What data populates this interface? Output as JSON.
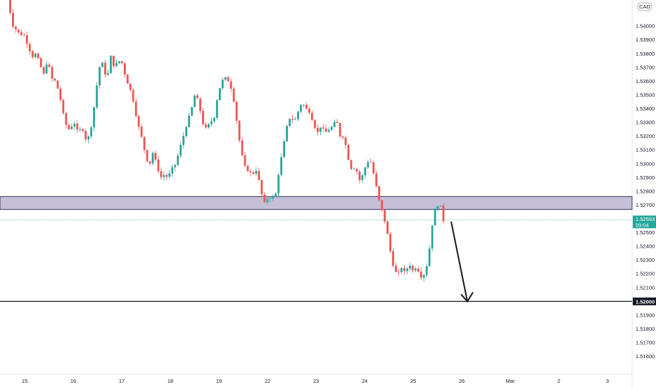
{
  "chart_data": {
    "type": "candlestick",
    "currency": "CAD",
    "colors": {
      "up": "#26a69a",
      "down": "#ef5350",
      "zone_fill": "#b2a9cc",
      "zone_border": "#3a3355",
      "level_line": "#131722",
      "price_line": "#26a69a",
      "arrow": "#131722"
    },
    "y_axis": {
      "range": [
        1.5147,
        1.5419
      ],
      "ticks": [
        "1.54000",
        "1.53900",
        "1.53800",
        "1.53700",
        "1.53600",
        "1.53500",
        "1.53400",
        "1.53300",
        "1.53200",
        "1.53100",
        "1.53000",
        "1.52900",
        "1.52800",
        "1.52700",
        "1.52500",
        "1.52400",
        "1.52300",
        "1.52200",
        "1.52100",
        "1.51900",
        "1.51800",
        "1.51700",
        "1.51600"
      ]
    },
    "x_axis": {
      "labels": [
        "15",
        "16",
        "17",
        "18",
        "19",
        "22",
        "23",
        "24",
        "25",
        "26",
        "Mar",
        "2",
        "3"
      ]
    },
    "current_price": {
      "label": "1.52593",
      "value": 1.52593,
      "countdown": "59:04"
    },
    "level": {
      "label": "1.52000",
      "value": 1.52
    },
    "resistance_zone": {
      "low": 1.52668,
      "high": 1.52762
    },
    "projection": {
      "from": 1.5258,
      "to": 1.52
    },
    "price_path": [
      [
        0,
        1.542
      ],
      [
        6,
        1.54
      ],
      [
        12,
        1.5395
      ],
      [
        18,
        1.5393
      ],
      [
        22,
        1.5385
      ],
      [
        26,
        1.5378
      ],
      [
        30,
        1.538
      ],
      [
        34,
        1.5372
      ],
      [
        38,
        1.5365
      ],
      [
        42,
        1.5376
      ],
      [
        46,
        1.5362
      ],
      [
        50,
        1.536
      ],
      [
        54,
        1.5352
      ],
      [
        56,
        1.5345
      ],
      [
        60,
        1.533
      ],
      [
        64,
        1.5325
      ],
      [
        70,
        1.533
      ],
      [
        74,
        1.5322
      ],
      [
        78,
        1.5327
      ],
      [
        82,
        1.5318
      ],
      [
        86,
        1.532
      ],
      [
        90,
        1.5338
      ],
      [
        96,
        1.537
      ],
      [
        100,
        1.5373
      ],
      [
        104,
        1.536
      ],
      [
        108,
        1.5378
      ],
      [
        112,
        1.537
      ],
      [
        116,
        1.5375
      ],
      [
        120,
        1.5373
      ],
      [
        124,
        1.5362
      ],
      [
        128,
        1.5355
      ],
      [
        132,
        1.5345
      ],
      [
        136,
        1.533
      ],
      [
        140,
        1.532
      ],
      [
        144,
        1.5308
      ],
      [
        148,
        1.5298
      ],
      [
        152,
        1.5308
      ],
      [
        156,
        1.53
      ],
      [
        160,
        1.529
      ],
      [
        164,
        1.5292
      ],
      [
        168,
        1.529
      ],
      [
        172,
        1.5296
      ],
      [
        176,
        1.53
      ],
      [
        180,
        1.531
      ],
      [
        184,
        1.532
      ],
      [
        188,
        1.533
      ],
      [
        192,
        1.5338
      ],
      [
        196,
        1.535
      ],
      [
        200,
        1.5345
      ],
      [
        204,
        1.533
      ],
      [
        208,
        1.5325
      ],
      [
        212,
        1.533
      ],
      [
        216,
        1.5333
      ],
      [
        220,
        1.535
      ],
      [
        224,
        1.536
      ],
      [
        228,
        1.5362
      ],
      [
        232,
        1.536
      ],
      [
        236,
        1.535
      ],
      [
        240,
        1.533
      ],
      [
        244,
        1.531
      ],
      [
        248,
        1.5298
      ],
      [
        252,
        1.5295
      ],
      [
        256,
        1.5292
      ],
      [
        260,
        1.5296
      ],
      [
        264,
        1.5285
      ],
      [
        268,
        1.527
      ],
      [
        272,
        1.5275
      ],
      [
        276,
        1.5276
      ],
      [
        280,
        1.5275
      ],
      [
        284,
        1.5295
      ],
      [
        288,
        1.531
      ],
      [
        292,
        1.5326
      ],
      [
        296,
        1.5335
      ],
      [
        300,
        1.533
      ],
      [
        304,
        1.5338
      ],
      [
        308,
        1.5345
      ],
      [
        312,
        1.534
      ],
      [
        316,
        1.5338
      ],
      [
        320,
        1.533
      ],
      [
        324,
        1.5322
      ],
      [
        328,
        1.5328
      ],
      [
        332,
        1.5322
      ],
      [
        336,
        1.5325
      ],
      [
        340,
        1.5327
      ],
      [
        344,
        1.5332
      ],
      [
        348,
        1.532
      ],
      [
        352,
        1.532
      ],
      [
        356,
        1.5305
      ],
      [
        360,
        1.5296
      ],
      [
        364,
        1.5298
      ],
      [
        368,
        1.5288
      ],
      [
        372,
        1.5292
      ],
      [
        376,
        1.5302
      ],
      [
        380,
        1.5301
      ],
      [
        384,
        1.529
      ],
      [
        388,
        1.5275
      ],
      [
        392,
        1.5265
      ],
      [
        396,
        1.5255
      ],
      [
        400,
        1.5238
      ],
      [
        404,
        1.5225
      ],
      [
        408,
        1.5218
      ],
      [
        412,
        1.5225
      ],
      [
        416,
        1.522
      ],
      [
        420,
        1.5228
      ],
      [
        424,
        1.5222
      ],
      [
        428,
        1.5226
      ],
      [
        432,
        1.5218
      ],
      [
        436,
        1.522
      ],
      [
        440,
        1.523
      ],
      [
        444,
        1.5255
      ],
      [
        448,
        1.5268
      ],
      [
        452,
        1.5272
      ],
      [
        456,
        1.5259
      ]
    ]
  }
}
